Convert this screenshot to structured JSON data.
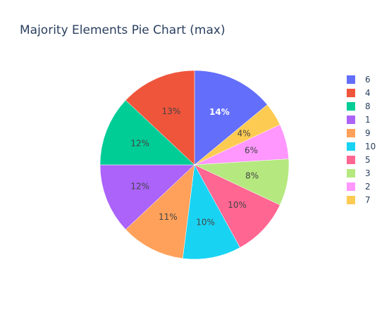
{
  "chart_data": {
    "type": "pie",
    "title": "Majority Elements Pie Chart (max)",
    "slices": [
      {
        "label": "6",
        "value": 14,
        "text": "14%",
        "color": "#636efa",
        "text_color": "#ffffff",
        "bold": true
      },
      {
        "label": "7",
        "value": 4,
        "text": "4%",
        "color": "#fecb52",
        "text_color": "#444444",
        "bold": false
      },
      {
        "label": "2",
        "value": 6,
        "text": "6%",
        "color": "#ff97ff",
        "text_color": "#444444",
        "bold": false
      },
      {
        "label": "3",
        "value": 8,
        "text": "8%",
        "color": "#b6e880",
        "text_color": "#444444",
        "bold": false
      },
      {
        "label": "5",
        "value": 10,
        "text": "10%",
        "color": "#ff6692",
        "text_color": "#444444",
        "bold": false
      },
      {
        "label": "10",
        "value": 10,
        "text": "10%",
        "color": "#19d3f3",
        "text_color": "#444444",
        "bold": false
      },
      {
        "label": "9",
        "value": 11,
        "text": "11%",
        "color": "#ffa15a",
        "text_color": "#444444",
        "bold": false
      },
      {
        "label": "1",
        "value": 12,
        "text": "12%",
        "color": "#ab63fa",
        "text_color": "#444444",
        "bold": false
      },
      {
        "label": "8",
        "value": 12,
        "text": "12%",
        "color": "#00cc96",
        "text_color": "#444444",
        "bold": false
      },
      {
        "label": "4",
        "value": 13,
        "text": "13%",
        "color": "#ef553b",
        "text_color": "#444444",
        "bold": false
      }
    ],
    "legend": [
      {
        "label": "6",
        "color": "#636efa"
      },
      {
        "label": "4",
        "color": "#ef553b"
      },
      {
        "label": "8",
        "color": "#00cc96"
      },
      {
        "label": "1",
        "color": "#ab63fa"
      },
      {
        "label": "9",
        "color": "#ffa15a"
      },
      {
        "label": "10",
        "color": "#19d3f3"
      },
      {
        "label": "5",
        "color": "#ff6692"
      },
      {
        "label": "3",
        "color": "#b6e880"
      },
      {
        "label": "2",
        "color": "#ff97ff"
      },
      {
        "label": "7",
        "color": "#fecb52"
      }
    ],
    "direction": "clockwise",
    "start": "top",
    "legend_position": "right"
  }
}
